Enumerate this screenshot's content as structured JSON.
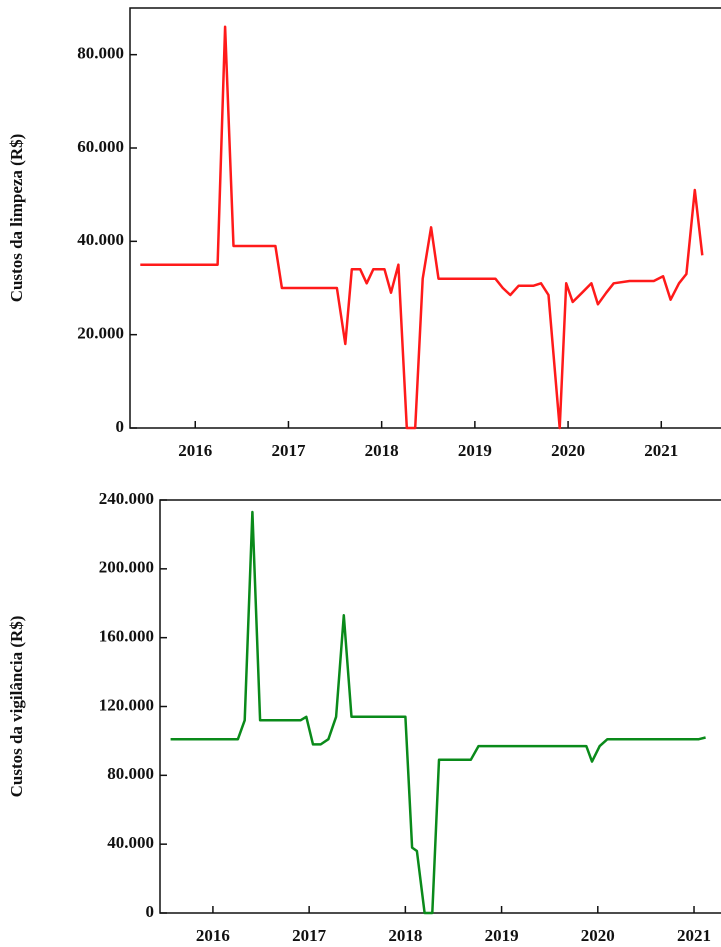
{
  "chart_data": [
    {
      "type": "line",
      "y_label": "Custos da limpeza (R$)",
      "color": "#ff1a1a",
      "x": [
        2015.41,
        2016.24,
        2016.32,
        2016.41,
        2016.86,
        2016.93,
        2017.52,
        2017.61,
        2017.68,
        2017.77,
        2017.84,
        2017.91,
        2018.03,
        2018.1,
        2018.18,
        2018.27,
        2018.36,
        2018.44,
        2018.53,
        2018.61,
        2019.22,
        2019.3,
        2019.38,
        2019.47,
        2019.63,
        2019.71,
        2019.79,
        2019.91,
        2019.98,
        2020.05,
        2020.15,
        2020.25,
        2020.32,
        2020.41,
        2020.49,
        2020.66,
        2020.92,
        2021.02,
        2021.1,
        2021.19,
        2021.27,
        2021.36,
        2021.44
      ],
      "values": [
        35000,
        35000,
        86000,
        39000,
        39000,
        30000,
        30000,
        18000,
        34000,
        34000,
        31000,
        34000,
        34000,
        29000,
        35000,
        0,
        0,
        32000,
        43000,
        32000,
        32000,
        30000,
        28500,
        30500,
        30500,
        31000,
        28500,
        0,
        31000,
        27000,
        29000,
        31000,
        26500,
        29000,
        31000,
        31500,
        31500,
        32500,
        27500,
        31000,
        33000,
        51000,
        37000
      ],
      "xlim": [
        2015.3,
        2021.63
      ],
      "xticks": [
        2016,
        2017,
        2018,
        2019,
        2020,
        2021
      ],
      "ylim": [
        0,
        90000
      ],
      "yticks": [
        0,
        {
          "value": 20000,
          "label": "20.000"
        },
        {
          "value": 40000,
          "label": "40.000"
        },
        {
          "value": 60000,
          "label": "60.000"
        },
        {
          "value": 80000,
          "label": "80.000"
        }
      ]
    },
    {
      "type": "line",
      "y_label": "Custos da vigilância (R$)",
      "color": "#0a8a1a",
      "x": [
        2015.56,
        2016.26,
        2016.33,
        2016.41,
        2016.49,
        2016.91,
        2016.97,
        2017.04,
        2017.12,
        2017.2,
        2017.28,
        2017.36,
        2017.44,
        2018.0,
        2018.07,
        2018.12,
        2018.2,
        2018.28,
        2018.35,
        2018.68,
        2018.76,
        2019.88,
        2019.94,
        2020.02,
        2020.1,
        2021.05,
        2021.12
      ],
      "values": [
        101000,
        101000,
        112000,
        233000,
        112000,
        112000,
        114000,
        98000,
        98000,
        101000,
        114000,
        173000,
        114000,
        114000,
        38000,
        36000,
        0,
        0,
        89000,
        89000,
        97000,
        97000,
        88000,
        97000,
        101000,
        101000,
        102000
      ],
      "xlim": [
        2015.45,
        2021.27
      ],
      "xticks": [
        2016,
        2017,
        2018,
        2019,
        2020,
        2021
      ],
      "ylim": [
        0,
        240000
      ],
      "yticks": [
        0,
        {
          "value": 40000,
          "label": "40.000"
        },
        {
          "value": 80000,
          "label": "80.000"
        },
        {
          "value": 120000,
          "label": "120.000"
        },
        {
          "value": 160000,
          "label": "160.000"
        },
        {
          "value": 200000,
          "label": "200.000"
        },
        {
          "value": 240000,
          "label": "240.000"
        }
      ]
    }
  ]
}
